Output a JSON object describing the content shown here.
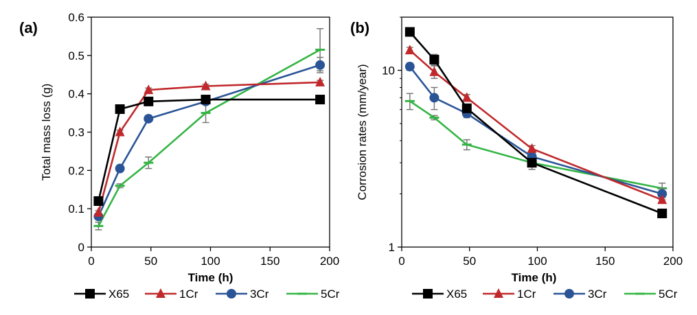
{
  "chart_data": [
    {
      "panel_label": "(a)",
      "type": "line",
      "xlabel": "Time (h)",
      "ylabel": "Total mass loss (g)",
      "xlim": [
        0,
        200
      ],
      "ylim": [
        0,
        0.6
      ],
      "x_ticks": [
        0,
        50,
        100,
        150,
        200
      ],
      "y_ticks": [
        0,
        0.1,
        0.2,
        0.3,
        0.4,
        0.5,
        0.6
      ],
      "x_tick_labels": [
        "0",
        "50",
        "100",
        "150",
        "200"
      ],
      "y_tick_labels": [
        "0",
        "0.1",
        "0.2",
        "0.3",
        "0.4",
        "0.5",
        "0.6"
      ],
      "y_scale": "linear",
      "grid": false,
      "legend_position": "bottom",
      "series": [
        {
          "name": "X65",
          "color": "#000000",
          "marker": "square",
          "x": [
            6,
            24,
            48,
            96,
            192
          ],
          "y": [
            0.12,
            0.36,
            0.38,
            0.385,
            0.385
          ],
          "err": [
            0.01,
            0.005,
            0.005,
            0.005,
            0.005
          ]
        },
        {
          "name": "1Cr",
          "color": "#c0282b",
          "marker": "triangle",
          "x": [
            6,
            24,
            48,
            96,
            192
          ],
          "y": [
            0.09,
            0.3,
            0.41,
            0.42,
            0.43
          ],
          "err": [
            0.005,
            0.005,
            0.005,
            0.005,
            0.005
          ]
        },
        {
          "name": "3Cr",
          "color": "#2a5496",
          "marker": "circle",
          "x": [
            6,
            24,
            48,
            96,
            192
          ],
          "y": [
            0.08,
            0.205,
            0.335,
            0.38,
            0.475
          ],
          "err": [
            0.005,
            0.005,
            0.005,
            0.005,
            0.02
          ]
        },
        {
          "name": "5Cr",
          "color": "#33b443",
          "marker": "dash",
          "x": [
            6,
            24,
            48,
            96,
            192
          ],
          "y": [
            0.055,
            0.16,
            0.22,
            0.35,
            0.515
          ],
          "err": [
            0.01,
            0.005,
            0.015,
            0.025,
            0.055
          ]
        }
      ]
    },
    {
      "panel_label": "(b)",
      "type": "line",
      "xlabel": "Time (h)",
      "ylabel": "Corrosion rates (mm/year)",
      "xlim": [
        0,
        200
      ],
      "ylim": [
        1,
        20
      ],
      "x_ticks": [
        0,
        50,
        100,
        150,
        200
      ],
      "y_ticks": [
        1,
        10
      ],
      "x_tick_labels": [
        "0",
        "50",
        "100",
        "150",
        "200"
      ],
      "y_tick_labels": [
        "1",
        "10"
      ],
      "y_scale": "log",
      "grid": false,
      "legend_position": "bottom",
      "series": [
        {
          "name": "X65",
          "color": "#000000",
          "marker": "square",
          "x": [
            6,
            24,
            48,
            96,
            192
          ],
          "y": [
            16.5,
            11.5,
            6.1,
            3.0,
            1.55
          ],
          "err": [
            0.5,
            0.8,
            0.3,
            0.1,
            0.05
          ]
        },
        {
          "name": "1Cr",
          "color": "#c0282b",
          "marker": "triangle",
          "x": [
            6,
            24,
            48,
            96,
            192
          ],
          "y": [
            13.0,
            9.8,
            7.0,
            3.6,
            1.85
          ],
          "err": [
            0.5,
            0.8,
            0.3,
            0.15,
            0.05
          ]
        },
        {
          "name": "3Cr",
          "color": "#2a5496",
          "marker": "circle",
          "x": [
            6,
            24,
            48,
            96,
            192
          ],
          "y": [
            10.5,
            7.0,
            5.7,
            3.25,
            2.0
          ],
          "err": [
            0.5,
            1.0,
            0.3,
            0.15,
            0.15
          ]
        },
        {
          "name": "5Cr",
          "color": "#33b443",
          "marker": "dash",
          "x": [
            6,
            24,
            48,
            96,
            192
          ],
          "y": [
            6.7,
            5.4,
            3.8,
            3.0,
            2.15
          ],
          "err": [
            0.7,
            0.15,
            0.25,
            0.25,
            0.15
          ]
        }
      ]
    }
  ]
}
